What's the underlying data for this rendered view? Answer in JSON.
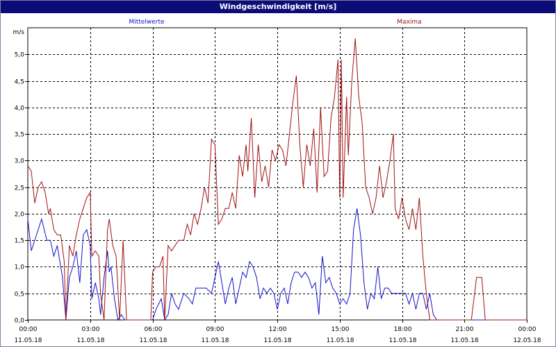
{
  "window": {
    "title": "Windgeschwindigkeit [m/s]"
  },
  "colors": {
    "mean": "#1010c8",
    "max": "#a01010",
    "grid": "#000000",
    "title_bg": "#0c0c78"
  },
  "chart_data": {
    "type": "line",
    "title": "Windgeschwindigkeit [m/s]",
    "ylabel": "m/s",
    "ylim": [
      0,
      5.5
    ],
    "xlim": [
      "11.05.18 00:00",
      "12.05.18 00:00"
    ],
    "y_ticks": [
      "0,0",
      "0,5",
      "1,0",
      "1,5",
      "2,0",
      "2,5",
      "3,0",
      "3,5",
      "4,0",
      "4,5",
      "5,0"
    ],
    "x_ticks": [
      {
        "time": "00:00",
        "date": "11.05.18"
      },
      {
        "time": "03:00",
        "date": "11.05.18"
      },
      {
        "time": "06:00",
        "date": "11.05.18"
      },
      {
        "time": "09:00",
        "date": "11.05.18"
      },
      {
        "time": "12:00",
        "date": "11.05.18"
      },
      {
        "time": "15:00",
        "date": "11.05.18"
      },
      {
        "time": "18:00",
        "date": "11.05.18"
      },
      {
        "time": "21:00",
        "date": "11.05.18"
      },
      {
        "time": "00:00",
        "date": "12.05.18"
      }
    ],
    "grid": true,
    "legend_position": "top",
    "series": [
      {
        "name": "Mittelwerte",
        "points": [
          [
            "00:00",
            1.9
          ],
          [
            "00:10",
            1.3
          ],
          [
            "00:25",
            1.6
          ],
          [
            "00:40",
            1.9
          ],
          [
            "00:55",
            1.5
          ],
          [
            "01:05",
            1.5
          ],
          [
            "01:15",
            1.2
          ],
          [
            "01:25",
            1.4
          ],
          [
            "01:40",
            0.8
          ],
          [
            "01:50",
            0.0
          ],
          [
            "02:00",
            0.8
          ],
          [
            "02:10",
            1.0
          ],
          [
            "02:20",
            1.3
          ],
          [
            "02:30",
            0.7
          ],
          [
            "02:40",
            1.6
          ],
          [
            "02:50",
            1.7
          ],
          [
            "03:00",
            1.4
          ],
          [
            "03:05",
            0.4
          ],
          [
            "03:15",
            0.7
          ],
          [
            "03:25",
            0.4
          ],
          [
            "03:30",
            0.1
          ],
          [
            "03:40",
            0.8
          ],
          [
            "03:50",
            1.3
          ],
          [
            "03:55",
            0.9
          ],
          [
            "04:00",
            1.0
          ],
          [
            "04:10",
            0.4
          ],
          [
            "04:20",
            0.0
          ],
          [
            "04:30",
            0.1
          ],
          [
            "04:40",
            0.0
          ],
          [
            "05:00",
            0.0
          ],
          [
            "05:30",
            0.0
          ],
          [
            "06:00",
            0.0
          ],
          [
            "06:10",
            0.2
          ],
          [
            "06:25",
            0.4
          ],
          [
            "06:35",
            0.0
          ],
          [
            "06:45",
            0.1
          ],
          [
            "06:55",
            0.5
          ],
          [
            "07:05",
            0.3
          ],
          [
            "07:15",
            0.2
          ],
          [
            "07:30",
            0.5
          ],
          [
            "07:45",
            0.4
          ],
          [
            "07:55",
            0.3
          ],
          [
            "08:05",
            0.6
          ],
          [
            "08:20",
            0.6
          ],
          [
            "08:35",
            0.6
          ],
          [
            "08:50",
            0.5
          ],
          [
            "09:00",
            0.8
          ],
          [
            "09:10",
            1.1
          ],
          [
            "09:20",
            0.7
          ],
          [
            "09:30",
            0.3
          ],
          [
            "09:40",
            0.6
          ],
          [
            "09:50",
            0.8
          ],
          [
            "10:00",
            0.3
          ],
          [
            "10:10",
            0.6
          ],
          [
            "10:20",
            0.9
          ],
          [
            "10:30",
            0.8
          ],
          [
            "10:40",
            1.1
          ],
          [
            "10:50",
            1.0
          ],
          [
            "11:00",
            0.8
          ],
          [
            "11:10",
            0.4
          ],
          [
            "11:20",
            0.6
          ],
          [
            "11:30",
            0.5
          ],
          [
            "11:40",
            0.6
          ],
          [
            "11:50",
            0.5
          ],
          [
            "12:00",
            0.2
          ],
          [
            "12:10",
            0.5
          ],
          [
            "12:20",
            0.6
          ],
          [
            "12:30",
            0.3
          ],
          [
            "12:40",
            0.7
          ],
          [
            "12:50",
            0.9
          ],
          [
            "13:00",
            0.9
          ],
          [
            "13:10",
            0.8
          ],
          [
            "13:20",
            0.9
          ],
          [
            "13:30",
            0.8
          ],
          [
            "13:40",
            0.6
          ],
          [
            "13:50",
            0.7
          ],
          [
            "14:00",
            0.1
          ],
          [
            "14:10",
            1.2
          ],
          [
            "14:20",
            0.7
          ],
          [
            "14:30",
            0.8
          ],
          [
            "14:40",
            0.6
          ],
          [
            "14:50",
            0.5
          ],
          [
            "15:00",
            0.3
          ],
          [
            "15:10",
            0.4
          ],
          [
            "15:20",
            0.3
          ],
          [
            "15:30",
            0.5
          ],
          [
            "15:40",
            1.7
          ],
          [
            "15:50",
            2.1
          ],
          [
            "16:00",
            1.6
          ],
          [
            "16:10",
            0.7
          ],
          [
            "16:20",
            0.2
          ],
          [
            "16:30",
            0.5
          ],
          [
            "16:40",
            0.4
          ],
          [
            "16:50",
            1.0
          ],
          [
            "17:00",
            0.4
          ],
          [
            "17:10",
            0.6
          ],
          [
            "17:20",
            0.6
          ],
          [
            "17:30",
            0.5
          ],
          [
            "17:40",
            0.5
          ],
          [
            "17:50",
            0.5
          ],
          [
            "18:00",
            0.5
          ],
          [
            "18:10",
            0.5
          ],
          [
            "18:20",
            0.3
          ],
          [
            "18:30",
            0.5
          ],
          [
            "18:40",
            0.2
          ],
          [
            "18:50",
            0.5
          ],
          [
            "19:00",
            0.5
          ],
          [
            "19:10",
            0.2
          ],
          [
            "19:20",
            0.5
          ],
          [
            "19:30",
            0.1
          ],
          [
            "19:40",
            0.0
          ],
          [
            "20:00",
            0.0
          ],
          [
            "21:00",
            0.0
          ],
          [
            "22:00",
            0.0
          ],
          [
            "23:00",
            0.0
          ],
          [
            "24:00",
            0.0
          ]
        ]
      },
      {
        "name": "Maxima",
        "points": [
          [
            "00:00",
            2.9
          ],
          [
            "00:10",
            2.8
          ],
          [
            "00:20",
            2.2
          ],
          [
            "00:30",
            2.5
          ],
          [
            "00:40",
            2.6
          ],
          [
            "00:50",
            2.4
          ],
          [
            "01:00",
            2.0
          ],
          [
            "01:05",
            2.1
          ],
          [
            "01:15",
            1.7
          ],
          [
            "01:25",
            1.6
          ],
          [
            "01:35",
            1.6
          ],
          [
            "01:45",
            1.1
          ],
          [
            "01:50",
            0.0
          ],
          [
            "02:00",
            1.4
          ],
          [
            "02:10",
            1.2
          ],
          [
            "02:20",
            1.6
          ],
          [
            "02:30",
            1.9
          ],
          [
            "02:40",
            2.1
          ],
          [
            "02:50",
            2.3
          ],
          [
            "03:00",
            2.4
          ],
          [
            "03:05",
            1.2
          ],
          [
            "03:15",
            1.3
          ],
          [
            "03:25",
            1.2
          ],
          [
            "03:30",
            0.5
          ],
          [
            "03:40",
            0.0
          ],
          [
            "03:50",
            1.7
          ],
          [
            "03:55",
            1.9
          ],
          [
            "04:05",
            1.4
          ],
          [
            "04:15",
            1.2
          ],
          [
            "04:25",
            0.0
          ],
          [
            "04:35",
            1.5
          ],
          [
            "04:45",
            0.0
          ],
          [
            "05:00",
            0.0
          ],
          [
            "05:30",
            0.0
          ],
          [
            "05:55",
            0.0
          ],
          [
            "06:00",
            0.9
          ],
          [
            "06:10",
            1.0
          ],
          [
            "06:20",
            1.0
          ],
          [
            "06:30",
            1.2
          ],
          [
            "06:35",
            0.0
          ],
          [
            "06:45",
            1.4
          ],
          [
            "06:55",
            1.3
          ],
          [
            "07:05",
            1.4
          ],
          [
            "07:15",
            1.5
          ],
          [
            "07:30",
            1.5
          ],
          [
            "07:40",
            1.8
          ],
          [
            "07:50",
            1.6
          ],
          [
            "08:00",
            2.0
          ],
          [
            "08:10",
            1.8
          ],
          [
            "08:20",
            2.1
          ],
          [
            "08:30",
            2.5
          ],
          [
            "08:40",
            2.2
          ],
          [
            "08:50",
            3.4
          ],
          [
            "09:00",
            3.3
          ],
          [
            "09:10",
            1.8
          ],
          [
            "09:20",
            1.9
          ],
          [
            "09:30",
            2.1
          ],
          [
            "09:40",
            2.1
          ],
          [
            "09:50",
            2.4
          ],
          [
            "10:00",
            2.1
          ],
          [
            "10:10",
            3.1
          ],
          [
            "10:20",
            2.7
          ],
          [
            "10:30",
            3.3
          ],
          [
            "10:35",
            2.8
          ],
          [
            "10:45",
            3.8
          ],
          [
            "10:55",
            2.3
          ],
          [
            "11:05",
            3.3
          ],
          [
            "11:15",
            2.6
          ],
          [
            "11:25",
            2.9
          ],
          [
            "11:35",
            2.5
          ],
          [
            "11:45",
            3.2
          ],
          [
            "11:55",
            3.0
          ],
          [
            "12:05",
            3.3
          ],
          [
            "12:15",
            3.2
          ],
          [
            "12:25",
            2.9
          ],
          [
            "12:35",
            3.5
          ],
          [
            "12:45",
            4.1
          ],
          [
            "12:55",
            4.6
          ],
          [
            "13:05",
            3.3
          ],
          [
            "13:15",
            2.5
          ],
          [
            "13:25",
            3.3
          ],
          [
            "13:35",
            2.9
          ],
          [
            "13:45",
            3.6
          ],
          [
            "13:55",
            2.4
          ],
          [
            "14:05",
            4.0
          ],
          [
            "14:15",
            2.7
          ],
          [
            "14:25",
            2.8
          ],
          [
            "14:35",
            3.8
          ],
          [
            "14:45",
            4.2
          ],
          [
            "14:55",
            4.9
          ],
          [
            "15:00",
            2.3
          ],
          [
            "15:05",
            4.9
          ],
          [
            "15:10",
            2.3
          ],
          [
            "15:20",
            4.2
          ],
          [
            "15:25",
            3.1
          ],
          [
            "15:35",
            4.5
          ],
          [
            "15:45",
            5.3
          ],
          [
            "15:55",
            4.2
          ],
          [
            "16:05",
            3.7
          ],
          [
            "16:15",
            2.5
          ],
          [
            "16:25",
            2.3
          ],
          [
            "16:35",
            2.0
          ],
          [
            "16:45",
            2.3
          ],
          [
            "16:55",
            2.9
          ],
          [
            "17:05",
            2.3
          ],
          [
            "17:15",
            2.6
          ],
          [
            "17:25",
            3.0
          ],
          [
            "17:35",
            3.5
          ],
          [
            "17:40",
            2.1
          ],
          [
            "17:50",
            1.9
          ],
          [
            "18:00",
            2.3
          ],
          [
            "18:10",
            1.9
          ],
          [
            "18:20",
            1.7
          ],
          [
            "18:30",
            2.1
          ],
          [
            "18:40",
            1.7
          ],
          [
            "18:50",
            2.3
          ],
          [
            "19:00",
            1.2
          ],
          [
            "19:10",
            0.5
          ],
          [
            "19:20",
            0.0
          ],
          [
            "20:00",
            0.0
          ],
          [
            "21:00",
            0.0
          ],
          [
            "21:20",
            0.0
          ],
          [
            "21:35",
            0.8
          ],
          [
            "21:50",
            0.8
          ],
          [
            "22:00",
            0.0
          ],
          [
            "23:00",
            0.0
          ],
          [
            "24:00",
            0.0
          ]
        ]
      }
    ]
  }
}
